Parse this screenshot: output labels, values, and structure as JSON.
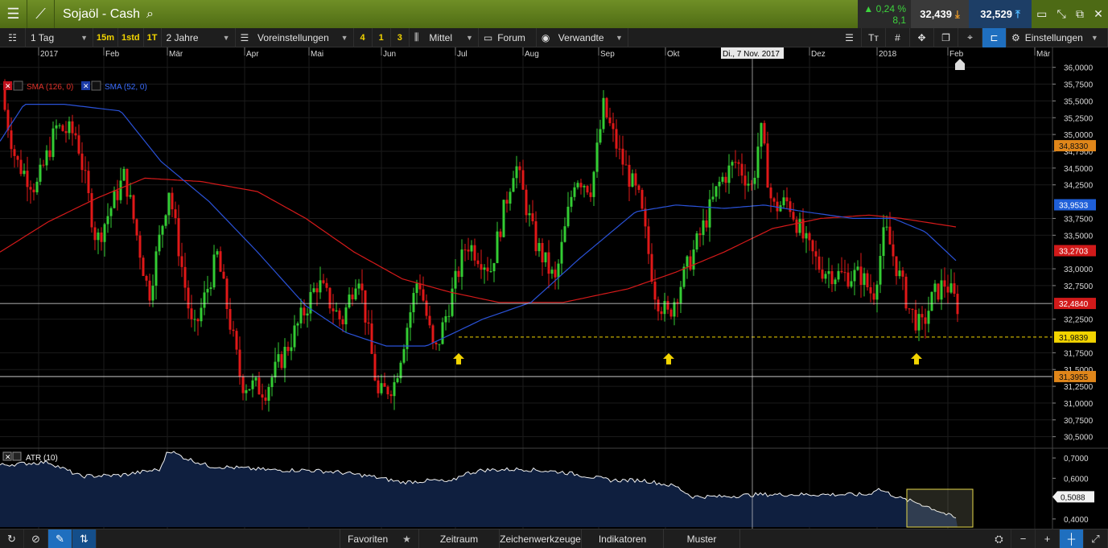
{
  "header": {
    "title": "Sojaöl - Cash",
    "change_pct": "0,24 %",
    "change_pts": "8,1",
    "bid": "32,439",
    "ask": "32,529"
  },
  "toolbar": {
    "interval": "1 Tag",
    "quick_15m": "15m",
    "quick_1std": "1std",
    "quick_1t": "1T",
    "range": "2 Jahre",
    "presets": "Voreinstellungen",
    "q4": "4",
    "q1": "1",
    "q3": "3",
    "style": "Mittel",
    "forum": "Forum",
    "related": "Verwandte",
    "settings": "Einstellungen"
  },
  "legend": {
    "sma1": "SMA (126, 0)",
    "sma2": "SMA (52, 0)",
    "atr": "ATR (10)"
  },
  "crosshair_date": "Di., 7 Nov. 2017",
  "months": [
    "2017",
    "Feb",
    "Mär",
    "Apr",
    "Mai",
    "Jun",
    "Jul",
    "Aug",
    "Sep",
    "Okt",
    "Dez",
    "2018",
    "Feb",
    "Mär"
  ],
  "price_ticks": [
    "36,0000",
    "35,7500",
    "35,5000",
    "35,2500",
    "35,0000",
    "34,7500",
    "34,5000",
    "34,2500",
    "33,7500",
    "33,5000",
    "33,0000",
    "32,7500",
    "32,2500",
    "31,7500",
    "31,5000",
    "31,2500",
    "31,0000",
    "30,7500",
    "30,5000"
  ],
  "price_tags": {
    "sma52": "34,8330",
    "sma126_blue": "33,9533",
    "red": "33,2703",
    "last": "32,4840",
    "support": "31,9839",
    "lower": "31,3955"
  },
  "atr_ticks": [
    "0,7000",
    "0,6000",
    "0,4000"
  ],
  "atr_tag": "0,5088",
  "bottom": {
    "favorites": "Favoriten",
    "timeframe": "Zeitraum",
    "drawing": "Zeichenwerkzeuge",
    "indicators": "Indikatoren",
    "patterns": "Muster"
  },
  "colors": {
    "up": "#33cc33",
    "down": "#e01818",
    "sma126": "#d61a1a",
    "sma52": "#2a52d8",
    "support": "#f2d400",
    "atr_fill": "#0f1f3f"
  },
  "chart_data": {
    "type": "candlestick",
    "y_range": [
      30.4,
      36.2
    ],
    "horizontal_lines": [
      32.484,
      31.984,
      31.3955
    ],
    "sma126": [
      [
        0,
        33.25
      ],
      [
        60,
        33.7
      ],
      [
        120,
        34.05
      ],
      [
        180,
        34.35
      ],
      [
        250,
        34.3
      ],
      [
        320,
        34.15
      ],
      [
        380,
        33.75
      ],
      [
        440,
        33.25
      ],
      [
        500,
        32.85
      ],
      [
        560,
        32.65
      ],
      [
        620,
        32.5
      ],
      [
        700,
        32.5
      ],
      [
        780,
        32.7
      ],
      [
        840,
        32.95
      ],
      [
        900,
        33.25
      ],
      [
        960,
        33.6
      ],
      [
        1020,
        33.75
      ],
      [
        1080,
        33.8
      ],
      [
        1120,
        33.75
      ],
      [
        1190,
        33.62
      ]
    ],
    "sma52": [
      [
        0,
        34.9
      ],
      [
        30,
        35.45
      ],
      [
        80,
        35.45
      ],
      [
        150,
        35.35
      ],
      [
        200,
        34.6
      ],
      [
        260,
        34.0
      ],
      [
        320,
        33.25
      ],
      [
        380,
        32.45
      ],
      [
        430,
        32.05
      ],
      [
        480,
        31.85
      ],
      [
        530,
        31.85
      ],
      [
        600,
        32.25
      ],
      [
        660,
        32.5
      ],
      [
        720,
        33.15
      ],
      [
        790,
        33.85
      ],
      [
        840,
        33.95
      ],
      [
        900,
        33.9
      ],
      [
        950,
        33.95
      ],
      [
        1000,
        33.85
      ],
      [
        1060,
        33.75
      ],
      [
        1110,
        33.75
      ],
      [
        1150,
        33.55
      ],
      [
        1190,
        33.1
      ]
    ]
  }
}
